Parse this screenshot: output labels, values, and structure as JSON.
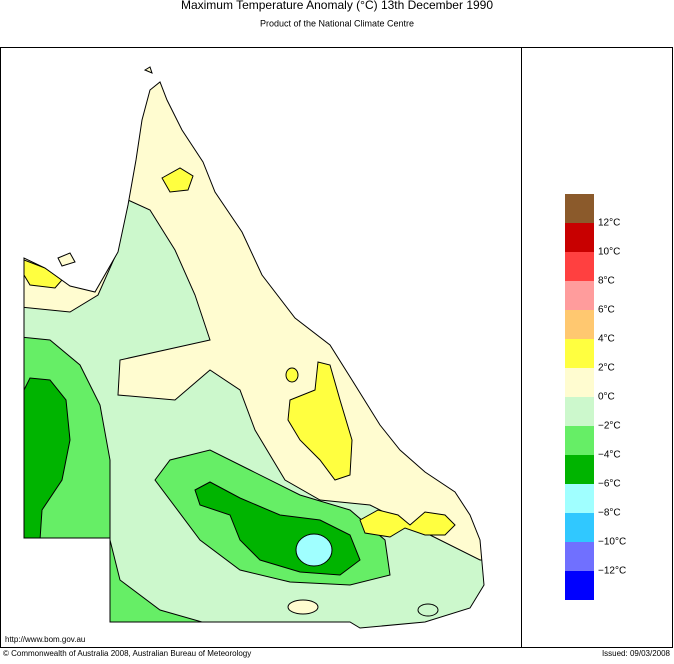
{
  "header": {
    "title": "Maximum Temperature Anomaly (°C)  13th December 1990",
    "subtitle": "Product of the National Climate Centre"
  },
  "legend": {
    "colors": [
      "#8b5a2b",
      "#c80000",
      "#ff4040",
      "#ff9c9c",
      "#ffc870",
      "#ffff40",
      "#fffcd0",
      "#ccf8cc",
      "#66ee66",
      "#00b400",
      "#a0ffff",
      "#30c8ff",
      "#7070ff",
      "#0000ff"
    ],
    "labels": [
      "12°C",
      "10°C",
      "8°C",
      "6°C",
      "4°C",
      "2°C",
      "0°C",
      "−2°C",
      "−4°C",
      "−6°C",
      "−8°C",
      "−10°C",
      "−12°C"
    ]
  },
  "footer": {
    "url": "http://www.bom.gov.au",
    "copyright": "© Commonwealth of Australia 2008, Australian Bureau of Meteorology",
    "issued": "Issued: 09/03/2008"
  }
}
